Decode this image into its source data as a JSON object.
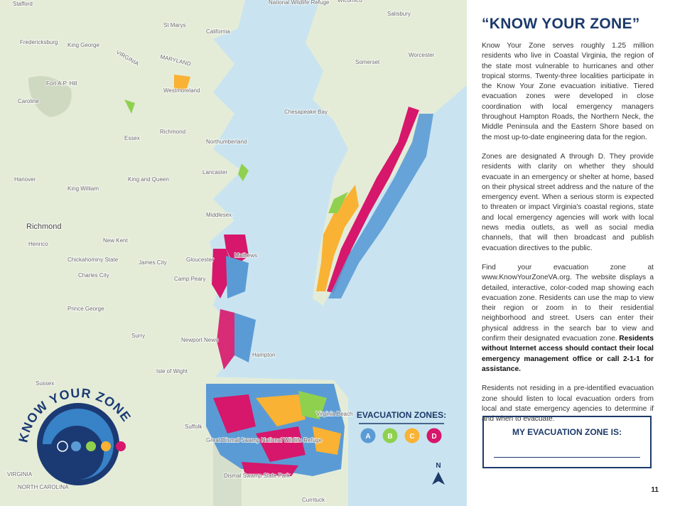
{
  "map": {
    "labels": [
      "Stafford",
      "Fredericksburg",
      "King George",
      "St Marys",
      "California",
      "MARYLAND",
      "VIRGINIA",
      "Fort A.P. Hill",
      "Caroline",
      "Westmoreland",
      "Chesapeake Bay",
      "Essex",
      "Richmond",
      "Northumberland",
      "Lancaster",
      "King and Queen",
      "Hanover",
      "King William",
      "Middlesex",
      "Richmond",
      "Henrico",
      "New Kent",
      "Chickahominy State",
      "Charles City",
      "James City",
      "Gloucester",
      "Mathews",
      "Camp Peary",
      "Prince George",
      "Surry",
      "Newport News",
      "Hampton",
      "Isle of Wight",
      "Sussex",
      "Suffolk",
      "Great Dismal Swamp National Wildlife Refuge",
      "Dismal Swamp State Park",
      "Virginia Beach",
      "VIRGINIA",
      "NORTH CAROLINA",
      "Currituck",
      "Salisbury",
      "Somerset",
      "Worcester",
      "National Wildlife Refuge",
      "Wicomico"
    ]
  },
  "logo": {
    "text": "KNOW YOUR ZONE"
  },
  "legend": {
    "title": "EVACUATION ZONES:",
    "zones": [
      {
        "label": "A",
        "color": "#5b9bd5"
      },
      {
        "label": "B",
        "color": "#8fd14f"
      },
      {
        "label": "C",
        "color": "#f9b233"
      },
      {
        "label": "D",
        "color": "#d6176b"
      }
    ]
  },
  "north": "N",
  "article": {
    "title": "“KNOW YOUR ZONE”",
    "paragraphs": [
      "Know Your Zone serves roughly 1.25 million residents who live in Coastal Virginia, the region of the state most vulnerable to hurricanes and other tropical storms. Twenty-three localities participate in the Know Your Zone evacuation initiative. Tiered evacuation zones were developed in close coordination with local emergency managers throughout Hampton Roads, the Northern Neck, the Middle Peninsula and the Eastern Shore based on the most up-to-date engineering data for the region.",
      "Zones are designated A through D. They provide residents with clarity on whether they should evacuate in an emergency or shelter at home, based on their physical street address and the nature of the emergency event. When a serious storm is expected to threaten or impact Virginia's coastal regions, state and local emergency agencies will work with local news media outlets, as well as social media channels, that will then broadcast and publish evacuation directives to the public.",
      {
        "text": "Find your evacuation zone at www.KnowYourZoneVA.org. The website displays a detailed, interactive, color-coded map showing each evacuation zone. Residents can use the map to view their region or zoom in to their residential neighborhood and street. Users can enter their physical address in the search bar to view and confirm their designated evacuation zone.",
        "emphasis": "Residents without Internet access should contact their local emergency management office or call 2-1-1 for assistance."
      },
      "Residents not residing in a pre-identified evacuation zone should listen to local evacuation orders from local and state emergency agencies to determine if and when to evacuate."
    ]
  },
  "zone_box": {
    "title": "MY EVACUATION ZONE IS:"
  },
  "page_number": "11"
}
